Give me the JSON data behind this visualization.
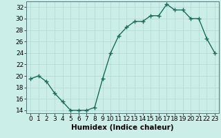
{
  "x": [
    0,
    1,
    2,
    3,
    4,
    5,
    6,
    7,
    8,
    9,
    10,
    11,
    12,
    13,
    14,
    15,
    16,
    17,
    18,
    19,
    20,
    21,
    22,
    23
  ],
  "y": [
    19.5,
    20.0,
    19.0,
    17.0,
    15.5,
    14.0,
    14.0,
    14.0,
    14.5,
    19.5,
    24.0,
    27.0,
    28.5,
    29.5,
    29.5,
    30.5,
    30.5,
    32.5,
    31.5,
    31.5,
    30.0,
    30.0,
    26.5,
    24.0
  ],
  "line_color": "#1a6b5a",
  "marker": "+",
  "marker_size": 4,
  "linewidth": 1.0,
  "bg_color": "#cceee8",
  "grid_color": "#b0d8d2",
  "xlabel": "Humidex (Indice chaleur)",
  "xlim": [
    -0.5,
    23.5
  ],
  "ylim": [
    13.5,
    33.0
  ],
  "yticks": [
    14,
    16,
    18,
    20,
    22,
    24,
    26,
    28,
    30,
    32
  ],
  "xtick_labels": [
    "0",
    "1",
    "2",
    "3",
    "4",
    "5",
    "6",
    "7",
    "8",
    "9",
    "10",
    "11",
    "12",
    "13",
    "14",
    "15",
    "16",
    "17",
    "18",
    "19",
    "20",
    "21",
    "22",
    "23"
  ],
  "xlabel_fontsize": 7.5,
  "tick_fontsize": 6.5,
  "markeredgewidth": 1.0
}
